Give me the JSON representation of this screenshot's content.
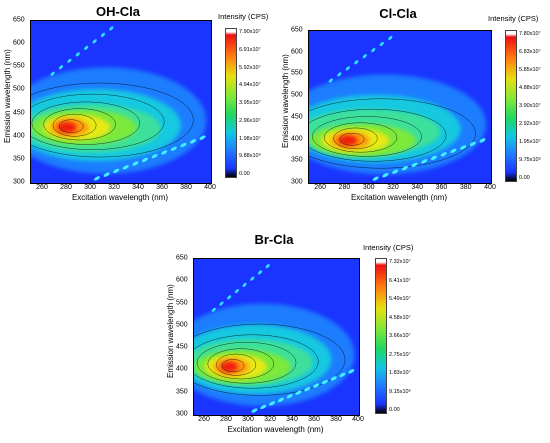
{
  "chart_data": [
    {
      "type": "heatmap",
      "title": "OH-Cla",
      "xlabel": "Excitation wavelength (nm)",
      "ylabel": "Emission wavelength (nm)",
      "xlim": [
        250,
        400
      ],
      "ylim": [
        300,
        650
      ],
      "x_ticks": [
        "260",
        "280",
        "300",
        "320",
        "340",
        "360",
        "380",
        "400"
      ],
      "y_ticks": [
        "300",
        "350",
        "400",
        "450",
        "500",
        "550",
        "600",
        "650"
      ],
      "colorbar": {
        "title": "Intensity (CPS)",
        "labels": [
          "7.90x10⁷",
          "6.91x10⁷",
          "5.92x10⁷",
          "4.94x10⁷",
          "3.95x10⁷",
          "2.96x10⁷",
          "1.98x10⁷",
          "9.88x10⁶",
          "0.00"
        ]
      },
      "peak": {
        "excitation": 280,
        "emission": 420,
        "intensity": 79000000
      }
    },
    {
      "type": "heatmap",
      "title": "Cl-Cla",
      "xlabel": "Excitation wavelength (nm)",
      "ylabel": "Emission wavelength (nm)",
      "xlim": [
        250,
        400
      ],
      "ylim": [
        300,
        650
      ],
      "x_ticks": [
        "260",
        "280",
        "300",
        "320",
        "340",
        "360",
        "380",
        "400"
      ],
      "y_ticks": [
        "300",
        "350",
        "400",
        "450",
        "500",
        "550",
        "600",
        "650"
      ],
      "colorbar": {
        "title": "Intensity (CPS)",
        "labels": [
          "7.80x10⁷",
          "6.83x10⁷",
          "5.85x10⁷",
          "4.88x10⁷",
          "3.90x10⁷",
          "2.92x10⁷",
          "1.95x10⁷",
          "9.75x10⁶",
          "0.00"
        ]
      },
      "peak": {
        "excitation": 282,
        "emission": 398,
        "intensity": 78000000
      }
    },
    {
      "type": "heatmap",
      "title": "Br-Cla",
      "xlabel": "Excitation wavelength (nm)",
      "ylabel": "Emission wavelength (nm)",
      "xlim": [
        250,
        400
      ],
      "ylim": [
        300,
        650
      ],
      "x_ticks": [
        "260",
        "280",
        "300",
        "320",
        "340",
        "360",
        "380",
        "400"
      ],
      "y_ticks": [
        "300",
        "350",
        "400",
        "450",
        "500",
        "550",
        "600",
        "650"
      ],
      "colorbar": {
        "title": "Intensity (CPS)",
        "labels": [
          "7.32x10⁷",
          "6.41x10⁷",
          "5.49x10⁷",
          "4.58x10⁷",
          "3.66x10⁷",
          "2.75x10⁷",
          "1.83x10⁷",
          "9.15x10⁶",
          "0.00"
        ]
      },
      "peak": {
        "excitation": 282,
        "emission": 408,
        "intensity": 73200000
      }
    }
  ]
}
